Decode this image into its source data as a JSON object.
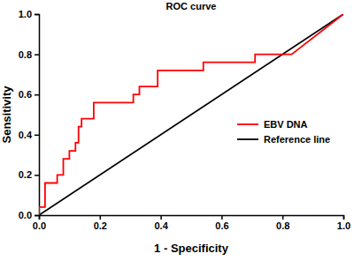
{
  "chart_data": {
    "type": "line",
    "title": "ROC curve",
    "x_label": "1 - Specificity",
    "y_label": "Sensitivity",
    "series": [
      {
        "name": "EBV DNA",
        "color": "#ff0000",
        "x": [
          0,
          0,
          0.02,
          0.02,
          0.06,
          0.06,
          0.08,
          0.08,
          0.1,
          0.1,
          0.12,
          0.12,
          0.13,
          0.13,
          0.14,
          0.14,
          0.18,
          0.18,
          0.31,
          0.31,
          0.33,
          0.33,
          0.39,
          0.39,
          0.54,
          0.54,
          0.71,
          0.71,
          0.83,
          1
        ],
        "values": [
          0,
          0.04,
          0.04,
          0.16,
          0.16,
          0.2,
          0.2,
          0.28,
          0.28,
          0.32,
          0.32,
          0.36,
          0.36,
          0.44,
          0.44,
          0.48,
          0.48,
          0.56,
          0.56,
          0.6,
          0.6,
          0.64,
          0.64,
          0.72,
          0.72,
          0.76,
          0.76,
          0.8,
          0.8,
          1
        ]
      },
      {
        "name": "Reference line",
        "color": "#000000",
        "x": [
          0,
          1
        ],
        "values": [
          0,
          1
        ]
      }
    ],
    "xlim": [
      0,
      1
    ],
    "ylim": [
      0,
      1
    ],
    "xticks": [
      {
        "value": 0,
        "label": "0.0"
      },
      {
        "value": 0.2,
        "label": "0.2"
      },
      {
        "value": 0.4,
        "label": "0.4"
      },
      {
        "value": 0.6,
        "label": "0.6"
      },
      {
        "value": 0.8,
        "label": "0.8"
      },
      {
        "value": 1,
        "label": "1.0"
      }
    ],
    "yticks": [
      {
        "value": 0,
        "label": "0.0"
      },
      {
        "value": 0.2,
        "label": "0.2"
      },
      {
        "value": 0.4,
        "label": "0.4"
      },
      {
        "value": 0.6,
        "label": "0.6"
      },
      {
        "value": 0.8,
        "label": "0.8"
      },
      {
        "value": 1,
        "label": "1.0"
      }
    ],
    "grid": false,
    "legend": "right"
  }
}
